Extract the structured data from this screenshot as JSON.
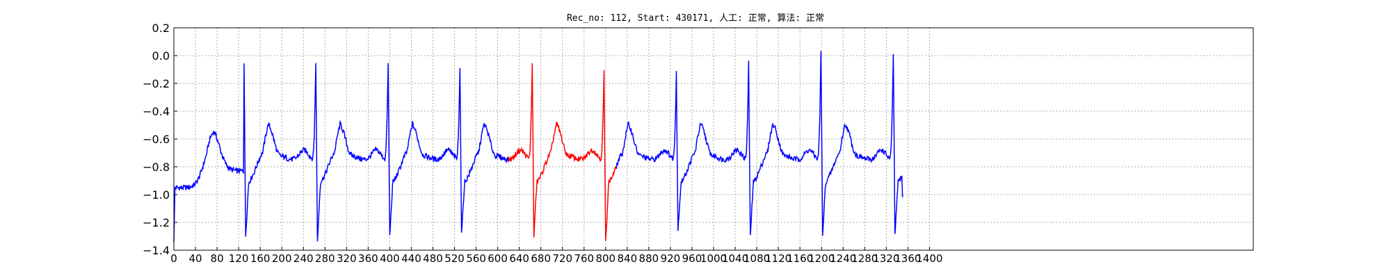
{
  "chart_data": {
    "type": "line",
    "title": "Rec_no: 112, Start: 430171, 人工: 正常, 算法: 正常",
    "xlim": [
      0,
      2000
    ],
    "ylim": [
      -1.4,
      0.2
    ],
    "yticks": [
      0.2,
      0.0,
      -0.2,
      -0.4,
      -0.6,
      -0.8,
      -1.0,
      -1.2,
      -1.4
    ],
    "ytick_labels": [
      "0.2",
      "0.0",
      "−0.2",
      "−0.4",
      "−0.6",
      "−0.8",
      "−1.0",
      "−1.2",
      "−1.4"
    ],
    "xticks": [
      0,
      40,
      80,
      120,
      160,
      200,
      240,
      280,
      320,
      360,
      400,
      440,
      480,
      520,
      560,
      600,
      640,
      680,
      720,
      760,
      800,
      840,
      880,
      920,
      960,
      1000,
      1040,
      1080,
      1120,
      1160,
      1200,
      1240,
      1280,
      1320,
      1360,
      1400
    ],
    "xtick_labels": [
      "0",
      "40",
      "80",
      "120",
      "160",
      "200",
      "240",
      "280",
      "320",
      "360",
      "400",
      "440",
      "480",
      "520",
      "560",
      "600",
      "640",
      "680",
      "720",
      "760",
      "800",
      "840",
      "880",
      "920",
      "960",
      "1000",
      "1040",
      "1080",
      "1120",
      "1160",
      "1200",
      "1240",
      "1280",
      "1320",
      "1360",
      "1400"
    ],
    "grid": true,
    "highlight_range": [
      620,
      820
    ],
    "colors": {
      "normal": "#0000ff",
      "highlight": "#ff0000"
    },
    "beats": [
      {
        "r_x": 130,
        "r_peak": -0.04,
        "s_min": -1.3
      },
      {
        "r_x": 263,
        "r_peak": -0.05,
        "s_min": -1.34
      },
      {
        "r_x": 397,
        "r_peak": -0.06,
        "s_min": -1.3
      },
      {
        "r_x": 530,
        "r_peak": -0.08,
        "s_min": -1.29
      },
      {
        "r_x": 664,
        "r_peak": -0.04,
        "s_min": -1.3
      },
      {
        "r_x": 797,
        "r_peak": -0.12,
        "s_min": -1.35
      },
      {
        "r_x": 931,
        "r_peak": -0.11,
        "s_min": -1.26
      },
      {
        "r_x": 1065,
        "r_peak": -0.05,
        "s_min": -1.31
      },
      {
        "r_x": 1199,
        "r_peak": 0.03,
        "s_min": -1.3
      },
      {
        "r_x": 1333,
        "r_peak": 0.02,
        "s_min": -1.3
      }
    ],
    "baseline_levels": {
      "st_segment": -0.95,
      "t_wave_peak": -0.65,
      "tp_segment": -0.75
    },
    "start_value": -1.34,
    "end_value": -1.02,
    "end_x": 1350
  }
}
